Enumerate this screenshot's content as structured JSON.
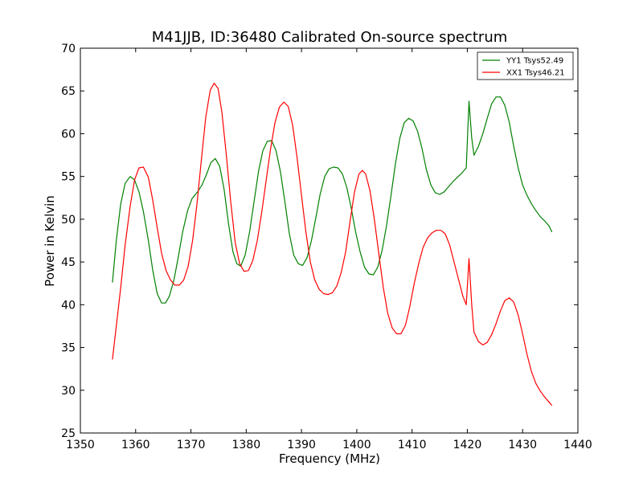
{
  "chart_data": {
    "type": "line",
    "title": "M41JJB, ID:36480 Calibrated On-source spectrum",
    "xlabel": "Frequency (MHz)",
    "ylabel": "Power in Kelvin",
    "xlim": [
      1350,
      1440
    ],
    "ylim": [
      25,
      70
    ],
    "xticks": [
      1350,
      1360,
      1370,
      1380,
      1390,
      1400,
      1410,
      1420,
      1430,
      1440
    ],
    "yticks": [
      25,
      30,
      35,
      40,
      45,
      50,
      55,
      60,
      65,
      70
    ],
    "grid": false,
    "legend_position": "top-right",
    "series": [
      {
        "name": "YY1 Tsys52.49",
        "color": "#008000",
        "points": [
          [
            1355.8,
            42.6
          ],
          [
            1356.5,
            47.5
          ],
          [
            1357.3,
            51.8
          ],
          [
            1358.1,
            54.2
          ],
          [
            1359.0,
            55.0
          ],
          [
            1359.8,
            54.6
          ],
          [
            1360.6,
            53.2
          ],
          [
            1361.4,
            50.9
          ],
          [
            1362.3,
            47.5
          ],
          [
            1363.1,
            44.0
          ],
          [
            1363.9,
            41.3
          ],
          [
            1364.7,
            40.2
          ],
          [
            1365.4,
            40.2
          ],
          [
            1366.1,
            41.0
          ],
          [
            1366.9,
            42.8
          ],
          [
            1367.7,
            45.5
          ],
          [
            1368.5,
            48.5
          ],
          [
            1369.4,
            51.0
          ],
          [
            1370.2,
            52.4
          ],
          [
            1371.2,
            53.2
          ],
          [
            1372.0,
            54.0
          ],
          [
            1372.8,
            55.2
          ],
          [
            1373.6,
            56.6
          ],
          [
            1374.4,
            57.1
          ],
          [
            1375.2,
            56.2
          ],
          [
            1376.0,
            53.5
          ],
          [
            1376.8,
            49.5
          ],
          [
            1377.6,
            46.2
          ],
          [
            1378.3,
            44.8
          ],
          [
            1379.0,
            44.5
          ],
          [
            1379.8,
            45.8
          ],
          [
            1380.6,
            48.5
          ],
          [
            1381.4,
            52.0
          ],
          [
            1382.2,
            55.5
          ],
          [
            1383.0,
            58.0
          ],
          [
            1383.8,
            59.1
          ],
          [
            1384.6,
            59.2
          ],
          [
            1385.4,
            58.0
          ],
          [
            1386.2,
            55.5
          ],
          [
            1387.0,
            52.0
          ],
          [
            1387.8,
            48.3
          ],
          [
            1388.6,
            45.8
          ],
          [
            1389.4,
            44.8
          ],
          [
            1390.2,
            44.6
          ],
          [
            1391.0,
            45.5
          ],
          [
            1391.8,
            47.5
          ],
          [
            1392.6,
            50.2
          ],
          [
            1393.4,
            53.0
          ],
          [
            1394.2,
            55.0
          ],
          [
            1395.0,
            55.9
          ],
          [
            1395.8,
            56.1
          ],
          [
            1396.6,
            56.0
          ],
          [
            1397.4,
            55.3
          ],
          [
            1398.2,
            53.7
          ],
          [
            1399.0,
            51.3
          ],
          [
            1399.8,
            48.5
          ],
          [
            1400.6,
            46.2
          ],
          [
            1401.4,
            44.4
          ],
          [
            1402.2,
            43.6
          ],
          [
            1403.0,
            43.5
          ],
          [
            1403.8,
            44.4
          ],
          [
            1404.6,
            46.4
          ],
          [
            1405.4,
            49.3
          ],
          [
            1406.2,
            52.8
          ],
          [
            1407.0,
            56.5
          ],
          [
            1407.8,
            59.5
          ],
          [
            1408.6,
            61.3
          ],
          [
            1409.4,
            61.8
          ],
          [
            1410.2,
            61.5
          ],
          [
            1411.0,
            60.3
          ],
          [
            1411.8,
            58.3
          ],
          [
            1412.6,
            55.8
          ],
          [
            1413.4,
            54.0
          ],
          [
            1414.2,
            53.1
          ],
          [
            1415.0,
            52.9
          ],
          [
            1415.8,
            53.2
          ],
          [
            1416.6,
            53.8
          ],
          [
            1417.4,
            54.4
          ],
          [
            1418.2,
            54.9
          ],
          [
            1419.0,
            55.4
          ],
          [
            1419.8,
            56.0
          ],
          [
            1420.3,
            63.8
          ],
          [
            1420.8,
            59.5
          ],
          [
            1421.2,
            57.5
          ],
          [
            1422.0,
            58.5
          ],
          [
            1422.8,
            60.0
          ],
          [
            1423.6,
            61.8
          ],
          [
            1424.4,
            63.5
          ],
          [
            1425.2,
            64.3
          ],
          [
            1426.0,
            64.3
          ],
          [
            1426.8,
            63.3
          ],
          [
            1427.6,
            61.3
          ],
          [
            1428.4,
            58.5
          ],
          [
            1429.2,
            56.0
          ],
          [
            1430.0,
            54.0
          ],
          [
            1430.8,
            52.8
          ],
          [
            1431.6,
            51.8
          ],
          [
            1432.4,
            51.0
          ],
          [
            1433.2,
            50.3
          ],
          [
            1434.0,
            49.8
          ],
          [
            1434.8,
            49.2
          ],
          [
            1435.3,
            48.5
          ]
        ]
      },
      {
        "name": "XX1 Tsys46.21",
        "color": "#ff0000",
        "points": [
          [
            1355.8,
            33.6
          ],
          [
            1356.5,
            37.5
          ],
          [
            1357.3,
            42.0
          ],
          [
            1358.1,
            47.0
          ],
          [
            1359.0,
            51.5
          ],
          [
            1359.8,
            54.6
          ],
          [
            1360.6,
            56.0
          ],
          [
            1361.4,
            56.1
          ],
          [
            1362.3,
            54.9
          ],
          [
            1363.1,
            52.2
          ],
          [
            1363.9,
            49.0
          ],
          [
            1364.7,
            46.0
          ],
          [
            1365.5,
            44.0
          ],
          [
            1366.3,
            42.9
          ],
          [
            1367.1,
            42.3
          ],
          [
            1367.9,
            42.3
          ],
          [
            1368.7,
            42.9
          ],
          [
            1369.5,
            44.5
          ],
          [
            1370.3,
            47.5
          ],
          [
            1371.1,
            51.8
          ],
          [
            1371.9,
            57.0
          ],
          [
            1372.7,
            62.0
          ],
          [
            1373.5,
            65.1
          ],
          [
            1374.2,
            65.9
          ],
          [
            1374.9,
            65.3
          ],
          [
            1375.6,
            62.5
          ],
          [
            1376.4,
            57.5
          ],
          [
            1377.2,
            52.0
          ],
          [
            1378.0,
            47.3
          ],
          [
            1378.8,
            44.8
          ],
          [
            1379.6,
            43.9
          ],
          [
            1380.4,
            44.0
          ],
          [
            1381.2,
            45.2
          ],
          [
            1382.0,
            47.5
          ],
          [
            1382.8,
            50.8
          ],
          [
            1383.6,
            54.5
          ],
          [
            1384.4,
            58.2
          ],
          [
            1385.2,
            61.3
          ],
          [
            1386.0,
            63.1
          ],
          [
            1386.8,
            63.7
          ],
          [
            1387.6,
            63.2
          ],
          [
            1388.4,
            61.0
          ],
          [
            1389.2,
            57.2
          ],
          [
            1390.0,
            52.8
          ],
          [
            1390.8,
            48.5
          ],
          [
            1391.6,
            45.0
          ],
          [
            1392.4,
            42.9
          ],
          [
            1393.2,
            41.8
          ],
          [
            1394.0,
            41.3
          ],
          [
            1394.8,
            41.2
          ],
          [
            1395.6,
            41.4
          ],
          [
            1396.4,
            42.2
          ],
          [
            1397.2,
            43.8
          ],
          [
            1398.0,
            46.2
          ],
          [
            1398.8,
            49.8
          ],
          [
            1399.6,
            53.2
          ],
          [
            1400.4,
            55.3
          ],
          [
            1401.0,
            55.7
          ],
          [
            1401.6,
            55.3
          ],
          [
            1402.4,
            53.3
          ],
          [
            1403.2,
            49.9
          ],
          [
            1404.0,
            45.9
          ],
          [
            1404.8,
            42.0
          ],
          [
            1405.6,
            39.0
          ],
          [
            1406.4,
            37.3
          ],
          [
            1407.2,
            36.6
          ],
          [
            1408.0,
            36.6
          ],
          [
            1408.8,
            37.6
          ],
          [
            1409.6,
            39.8
          ],
          [
            1410.4,
            42.5
          ],
          [
            1411.2,
            44.8
          ],
          [
            1412.0,
            46.7
          ],
          [
            1412.8,
            47.8
          ],
          [
            1413.6,
            48.4
          ],
          [
            1414.4,
            48.7
          ],
          [
            1415.2,
            48.7
          ],
          [
            1416.0,
            48.3
          ],
          [
            1416.8,
            47.0
          ],
          [
            1417.6,
            45.0
          ],
          [
            1418.4,
            43.0
          ],
          [
            1419.2,
            41.0
          ],
          [
            1419.8,
            40.0
          ],
          [
            1420.3,
            45.4
          ],
          [
            1420.8,
            40.0
          ],
          [
            1421.2,
            36.8
          ],
          [
            1422.0,
            35.7
          ],
          [
            1422.8,
            35.3
          ],
          [
            1423.6,
            35.6
          ],
          [
            1424.4,
            36.5
          ],
          [
            1425.2,
            37.8
          ],
          [
            1426.0,
            39.3
          ],
          [
            1426.8,
            40.5
          ],
          [
            1427.6,
            40.8
          ],
          [
            1428.4,
            40.3
          ],
          [
            1429.2,
            38.8
          ],
          [
            1430.0,
            36.6
          ],
          [
            1430.8,
            34.2
          ],
          [
            1431.6,
            32.2
          ],
          [
            1432.4,
            30.8
          ],
          [
            1433.2,
            29.9
          ],
          [
            1434.0,
            29.2
          ],
          [
            1434.8,
            28.6
          ],
          [
            1435.3,
            28.2
          ]
        ]
      }
    ]
  }
}
